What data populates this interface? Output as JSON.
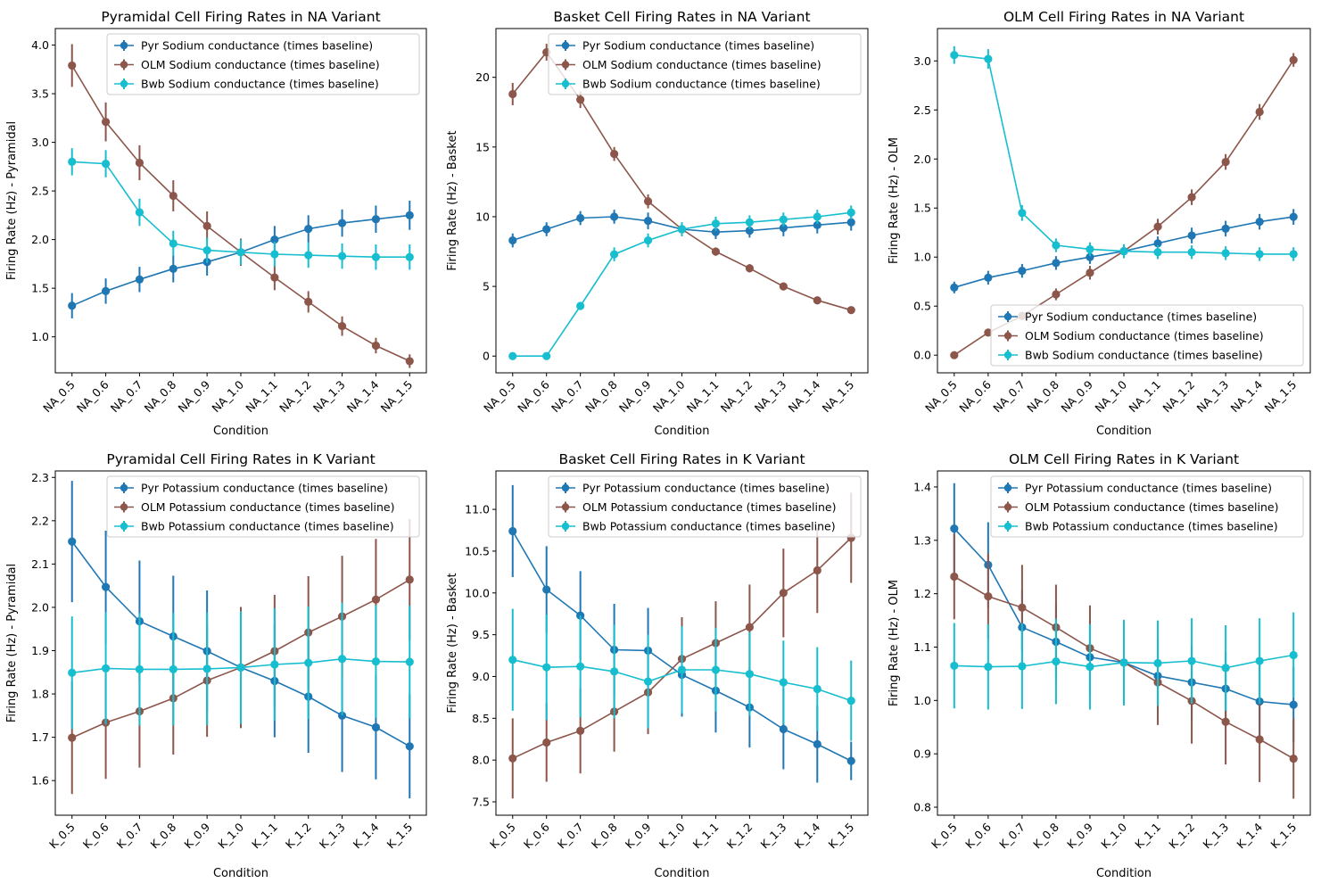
{
  "figure": {
    "colors": {
      "Pyr": "#1f77b4",
      "OLM": "#8c564b",
      "Bwb": "#17becf",
      "axis": "#000000",
      "legend_border": "#cccccc"
    }
  },
  "chart_data": [
    {
      "type": "line",
      "title": "Pyramidal Cell Firing Rates in NA Variant",
      "xlabel": "Condition",
      "ylabel": "Firing Rate (Hz) - Pyramidal",
      "categories": [
        "NA_0.5",
        "NA_0.6",
        "NA_0.7",
        "NA_0.8",
        "NA_0.9",
        "NA_1.0",
        "NA_1.1",
        "NA_1.2",
        "NA_1.3",
        "NA_1.4",
        "NA_1.5"
      ],
      "ylim": [
        0.63,
        4.17
      ],
      "yticks": [
        "1.0",
        "1.5",
        "2.0",
        "2.5",
        "3.0",
        "3.5",
        "4.0"
      ],
      "legend": "top-right",
      "grid": false,
      "error_bars": true,
      "series": [
        {
          "name": "Pyr Sodium conductance (times baseline)",
          "key": "Pyr",
          "values": [
            1.32,
            1.47,
            1.59,
            1.7,
            1.77,
            1.87,
            2.0,
            2.11,
            2.17,
            2.21,
            2.25
          ],
          "errors": [
            0.13,
            0.13,
            0.13,
            0.14,
            0.14,
            0.14,
            0.14,
            0.14,
            0.14,
            0.14,
            0.15
          ]
        },
        {
          "name": "OLM Sodium conductance (times baseline)",
          "key": "OLM",
          "values": [
            3.79,
            3.21,
            2.79,
            2.45,
            2.14,
            1.87,
            1.61,
            1.36,
            1.11,
            0.91,
            0.75
          ],
          "errors": [
            0.22,
            0.2,
            0.18,
            0.16,
            0.15,
            0.14,
            0.13,
            0.11,
            0.1,
            0.08,
            0.07
          ]
        },
        {
          "name": "Bwb Sodium conductance (times baseline)",
          "key": "Bwb",
          "values": [
            2.8,
            2.78,
            2.28,
            1.96,
            1.89,
            1.87,
            1.85,
            1.84,
            1.83,
            1.82,
            1.82
          ],
          "errors": [
            0.14,
            0.14,
            0.14,
            0.13,
            0.13,
            0.13,
            0.13,
            0.13,
            0.13,
            0.13,
            0.13
          ]
        }
      ]
    },
    {
      "type": "line",
      "title": "Basket Cell Firing Rates in NA Variant",
      "xlabel": "Condition",
      "ylabel": "Firing Rate (Hz) - Basket",
      "categories": [
        "NA_0.5",
        "NA_0.6",
        "NA_0.7",
        "NA_0.8",
        "NA_0.9",
        "NA_1.0",
        "NA_1.1",
        "NA_1.2",
        "NA_1.3",
        "NA_1.4",
        "NA_1.5"
      ],
      "ylim": [
        -1.2,
        23.5
      ],
      "yticks": [
        "0",
        "5",
        "10",
        "15",
        "20"
      ],
      "legend": "top-right",
      "grid": false,
      "error_bars": true,
      "series": [
        {
          "name": "Pyr Sodium conductance (times baseline)",
          "key": "Pyr",
          "values": [
            8.3,
            9.1,
            9.9,
            10.0,
            9.7,
            9.1,
            8.9,
            9.0,
            9.2,
            9.4,
            9.6
          ],
          "errors": [
            0.5,
            0.5,
            0.5,
            0.5,
            0.6,
            0.5,
            0.5,
            0.5,
            0.6,
            0.6,
            0.6
          ]
        },
        {
          "name": "OLM Sodium conductance (times baseline)",
          "key": "OLM",
          "values": [
            18.8,
            21.8,
            18.4,
            14.5,
            11.1,
            9.1,
            7.5,
            6.3,
            5.0,
            4.0,
            3.3
          ],
          "errors": [
            0.8,
            0.6,
            0.6,
            0.5,
            0.5,
            0.4,
            0.3,
            0.3,
            0.2,
            0.2,
            0.2
          ]
        },
        {
          "name": "Bwb Sodium conductance (times baseline)",
          "key": "Bwb",
          "values": [
            0.0,
            0.0,
            3.6,
            7.3,
            8.3,
            9.1,
            9.5,
            9.6,
            9.8,
            10.0,
            10.3
          ],
          "errors": [
            0.1,
            0.1,
            0.2,
            0.5,
            0.5,
            0.5,
            0.5,
            0.5,
            0.5,
            0.5,
            0.5
          ]
        }
      ]
    },
    {
      "type": "line",
      "title": "OLM Cell Firing Rates in NA Variant",
      "xlabel": "Condition",
      "ylabel": "Firing Rate (Hz) - OLM",
      "categories": [
        "NA_0.5",
        "NA_0.6",
        "NA_0.7",
        "NA_0.8",
        "NA_0.9",
        "NA_1.0",
        "NA_1.1",
        "NA_1.2",
        "NA_1.3",
        "NA_1.4",
        "NA_1.5"
      ],
      "ylim": [
        -0.18,
        3.33
      ],
      "yticks": [
        "0.0",
        "0.5",
        "1.0",
        "1.5",
        "2.0",
        "2.5",
        "3.0"
      ],
      "legend": "lower-right",
      "grid": false,
      "error_bars": true,
      "series": [
        {
          "name": "Pyr Sodium conductance (times baseline)",
          "key": "Pyr",
          "values": [
            0.69,
            0.79,
            0.86,
            0.94,
            1.0,
            1.06,
            1.14,
            1.22,
            1.29,
            1.36,
            1.41
          ],
          "errors": [
            0.06,
            0.07,
            0.07,
            0.07,
            0.07,
            0.07,
            0.07,
            0.08,
            0.08,
            0.08,
            0.08
          ]
        },
        {
          "name": "OLM Sodium conductance (times baseline)",
          "key": "OLM",
          "values": [
            0.0,
            0.23,
            0.4,
            0.62,
            0.84,
            1.06,
            1.31,
            1.61,
            1.97,
            2.48,
            3.01
          ],
          "errors": [
            0.01,
            0.03,
            0.04,
            0.06,
            0.07,
            0.07,
            0.08,
            0.08,
            0.08,
            0.08,
            0.07
          ]
        },
        {
          "name": "Bwb Sodium conductance (times baseline)",
          "key": "Bwb",
          "values": [
            3.06,
            3.02,
            1.45,
            1.12,
            1.08,
            1.06,
            1.05,
            1.05,
            1.04,
            1.03,
            1.03
          ],
          "errors": [
            0.09,
            0.1,
            0.08,
            0.07,
            0.07,
            0.07,
            0.07,
            0.07,
            0.07,
            0.07,
            0.07
          ]
        }
      ]
    },
    {
      "type": "line",
      "title": "Pyramidal Cell Firing Rates in K Variant",
      "xlabel": "Condition",
      "ylabel": "Firing Rate (Hz) - Pyramidal",
      "categories": [
        "K_0.5",
        "K_0.6",
        "K_0.7",
        "K_0.8",
        "K_0.9",
        "K_1.0",
        "K_1.1",
        "K_1.2",
        "K_1.3",
        "K_1.4",
        "K_1.5"
      ],
      "ylim": [
        1.52,
        2.315
      ],
      "yticks": [
        "1.6",
        "1.7",
        "1.8",
        "1.9",
        "2.0",
        "2.1",
        "2.2",
        "2.3"
      ],
      "legend": "top-right",
      "grid": false,
      "error_bars": true,
      "series": [
        {
          "name": "Pyr Potassium conductance (times baseline)",
          "key": "Pyr",
          "values": [
            2.152,
            2.047,
            1.968,
            1.933,
            1.899,
            1.861,
            1.83,
            1.794,
            1.75,
            1.723,
            1.679
          ],
          "errors": [
            0.14,
            0.13,
            0.14,
            0.14,
            0.14,
            0.13,
            0.13,
            0.13,
            0.13,
            0.12,
            0.12
          ]
        },
        {
          "name": "OLM Potassium conductance (times baseline)",
          "key": "OLM",
          "values": [
            1.699,
            1.734,
            1.76,
            1.79,
            1.831,
            1.861,
            1.899,
            1.942,
            1.979,
            2.018,
            2.064
          ],
          "errors": [
            0.13,
            0.13,
            0.13,
            0.13,
            0.13,
            0.14,
            0.13,
            0.13,
            0.14,
            0.14,
            0.14
          ]
        },
        {
          "name": "Bwb Potassium conductance (times baseline)",
          "key": "Bwb",
          "values": [
            1.849,
            1.859,
            1.857,
            1.857,
            1.858,
            1.861,
            1.868,
            1.872,
            1.881,
            1.875,
            1.874
          ],
          "errors": [
            0.13,
            0.13,
            0.13,
            0.13,
            0.13,
            0.13,
            0.13,
            0.13,
            0.13,
            0.13,
            0.13
          ]
        }
      ]
    },
    {
      "type": "line",
      "title": "Basket Cell Firing Rates in K Variant",
      "xlabel": "Condition",
      "ylabel": "Firing Rate (Hz) - Basket",
      "categories": [
        "K_0.5",
        "K_0.6",
        "K_0.7",
        "K_0.8",
        "K_0.9",
        "K_1.0",
        "K_1.1",
        "K_1.2",
        "K_1.3",
        "K_1.4",
        "K_1.5"
      ],
      "ylim": [
        7.34,
        11.46
      ],
      "yticks": [
        "7.5",
        "8.0",
        "8.5",
        "9.0",
        "9.5",
        "10.0",
        "10.5",
        "11.0"
      ],
      "legend": "top-right",
      "grid": false,
      "error_bars": true,
      "series": [
        {
          "name": "Pyr Potassium conductance (times baseline)",
          "key": "Pyr",
          "values": [
            10.74,
            10.04,
            9.73,
            9.32,
            9.31,
            9.02,
            8.83,
            8.63,
            8.37,
            8.19,
            7.99
          ],
          "errors": [
            0.55,
            0.52,
            0.53,
            0.55,
            0.51,
            0.5,
            0.5,
            0.48,
            0.48,
            0.46,
            0.23
          ]
        },
        {
          "name": "OLM Potassium conductance (times baseline)",
          "key": "OLM",
          "values": [
            8.02,
            8.21,
            8.35,
            8.58,
            8.81,
            9.21,
            9.4,
            9.59,
            10.0,
            10.27,
            10.66
          ],
          "errors": [
            0.48,
            0.47,
            0.51,
            0.48,
            0.5,
            0.5,
            0.5,
            0.51,
            0.53,
            0.51,
            0.54
          ]
        },
        {
          "name": "Bwb Potassium conductance (times baseline)",
          "key": "Bwb",
          "values": [
            9.2,
            9.11,
            9.12,
            9.06,
            8.94,
            9.08,
            9.08,
            9.03,
            8.93,
            8.85,
            8.71
          ],
          "errors": [
            0.61,
            0.63,
            0.61,
            0.56,
            0.56,
            0.52,
            0.5,
            0.5,
            0.5,
            0.5,
            0.48
          ]
        }
      ]
    },
    {
      "type": "line",
      "title": "OLM Cell Firing Rates in K Variant",
      "xlabel": "Condition",
      "ylabel": "Firing Rate (Hz) - OLM",
      "categories": [
        "K_0.5",
        "K_0.6",
        "K_0.7",
        "K_0.8",
        "K_0.9",
        "K_1.0",
        "K_1.1",
        "K_1.2",
        "K_1.3",
        "K_1.4",
        "K_1.5"
      ],
      "ylim": [
        0.785,
        1.43
      ],
      "yticks": [
        "0.8",
        "0.9",
        "1.0",
        "1.1",
        "1.2",
        "1.3",
        "1.4"
      ],
      "legend": "top-right",
      "grid": false,
      "error_bars": true,
      "series": [
        {
          "name": "Pyr Potassium conductance (times baseline)",
          "key": "Pyr",
          "values": [
            1.322,
            1.254,
            1.137,
            1.11,
            1.081,
            1.071,
            1.046,
            1.034,
            1.022,
            0.998,
            0.992
          ],
          "errors": [
            0.085,
            0.08,
            0.07,
            0.07,
            0.07,
            0.08,
            0.07,
            0.07,
            0.07,
            0.07,
            0.07
          ]
        },
        {
          "name": "OLM Potassium conductance (times baseline)",
          "key": "OLM",
          "values": [
            1.232,
            1.195,
            1.174,
            1.137,
            1.098,
            1.071,
            1.034,
            0.999,
            0.96,
            0.927,
            0.891
          ],
          "errors": [
            0.08,
            0.08,
            0.08,
            0.08,
            0.08,
            0.08,
            0.08,
            0.08,
            0.08,
            0.08,
            0.075
          ]
        },
        {
          "name": "Bwb Potassium conductance (times baseline)",
          "key": "Bwb",
          "values": [
            1.065,
            1.063,
            1.064,
            1.073,
            1.063,
            1.071,
            1.07,
            1.074,
            1.061,
            1.074,
            1.085
          ],
          "errors": [
            0.08,
            0.08,
            0.08,
            0.08,
            0.08,
            0.08,
            0.08,
            0.08,
            0.08,
            0.08,
            0.08
          ]
        }
      ]
    }
  ]
}
